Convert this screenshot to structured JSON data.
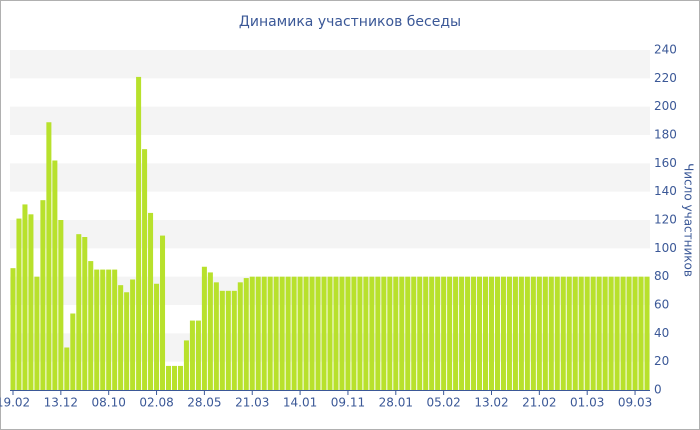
{
  "chart_data": {
    "type": "bar",
    "title": "Динамика участников беседы",
    "y_label": "Число участников",
    "categories": [
      "19.02",
      null,
      null,
      null,
      null,
      null,
      null,
      null,
      "13.12",
      null,
      null,
      null,
      null,
      null,
      null,
      null,
      "08.10",
      null,
      null,
      null,
      null,
      null,
      null,
      null,
      "02.08",
      null,
      null,
      null,
      null,
      null,
      null,
      null,
      "28.05",
      null,
      null,
      null,
      null,
      null,
      null,
      null,
      "21.03",
      null,
      null,
      null,
      null,
      null,
      null,
      null,
      "14.01",
      null,
      null,
      null,
      null,
      null,
      null,
      null,
      "09.11",
      null,
      null,
      null,
      null,
      null,
      null,
      null,
      "28.01",
      null,
      null,
      null,
      null,
      null,
      null,
      null,
      "05.02",
      null,
      null,
      null,
      null,
      null,
      null,
      null,
      "13.02",
      null,
      null,
      null,
      null,
      null,
      null,
      null,
      "21.02",
      null,
      null,
      null,
      null,
      null,
      null,
      null,
      "01.03",
      null,
      null,
      null,
      null,
      null,
      null,
      null,
      "09.03",
      null,
      null
    ],
    "values": [
      86,
      121,
      131,
      124,
      80,
      134,
      189,
      162,
      120,
      30,
      54,
      110,
      108,
      91,
      85,
      85,
      85,
      85,
      74,
      69,
      78,
      221,
      170,
      125,
      75,
      109,
      17,
      17,
      17,
      35,
      49,
      49,
      87,
      83,
      76,
      70,
      70,
      70,
      76,
      79,
      80,
      80,
      80,
      80,
      80,
      80,
      80,
      80,
      80,
      80,
      80,
      80,
      80,
      80,
      80,
      80,
      80,
      80,
      80,
      80,
      80,
      80,
      80,
      80,
      80,
      80,
      80,
      80,
      80,
      80,
      80,
      80,
      80,
      80,
      80,
      80,
      80,
      80,
      80,
      80,
      80,
      80,
      80,
      80,
      80,
      80,
      80,
      80,
      80,
      80,
      80,
      80,
      80,
      80,
      80,
      80,
      80,
      80,
      80,
      80,
      80,
      80,
      80,
      80,
      80,
      80,
      80
    ],
    "color": "#b8e12c",
    "ylim": [
      0,
      240
    ],
    "yticks": [
      0,
      20,
      40,
      60,
      80,
      100,
      120,
      140,
      160,
      180,
      200,
      220,
      240
    ],
    "grid": true
  }
}
